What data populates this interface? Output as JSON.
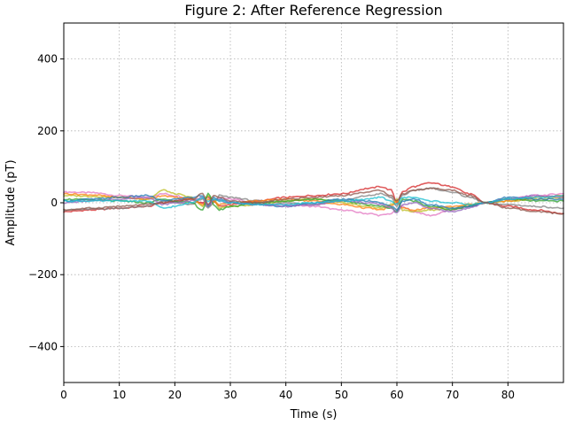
{
  "chart_data": {
    "type": "line",
    "title": "Figure 2: After Reference Regression",
    "xlabel": "Time (s)",
    "ylabel": "Amplitude (pT)",
    "xlim": [
      0,
      90
    ],
    "ylim": [
      -500,
      500
    ],
    "xticks": [
      0,
      10,
      20,
      30,
      40,
      50,
      60,
      70,
      80
    ],
    "yticks": [
      -400,
      -200,
      0,
      200,
      400
    ],
    "xtick_labels": [
      "0",
      "10",
      "20",
      "30",
      "40",
      "50",
      "60",
      "70",
      "80"
    ],
    "ytick_labels": [
      "−400",
      "−200",
      "0",
      "200",
      "400"
    ],
    "grid": true,
    "x": [
      0,
      5,
      10,
      15,
      18,
      20,
      23,
      25,
      26,
      27,
      28,
      30,
      35,
      40,
      45,
      50,
      55,
      57,
      59,
      60,
      61,
      63,
      66,
      70,
      73,
      76,
      80,
      85,
      90
    ],
    "series": [
      {
        "color": "#e377c2",
        "values": [
          30,
          28,
          20,
          15,
          25,
          20,
          10,
          0,
          -10,
          5,
          15,
          10,
          0,
          -5,
          -10,
          -20,
          -30,
          -35,
          -30,
          -20,
          -10,
          -25,
          -35,
          -20,
          -10,
          0,
          10,
          20,
          25
        ]
      },
      {
        "color": "#d62728",
        "values": [
          -25,
          -20,
          -15,
          -10,
          0,
          5,
          10,
          0,
          15,
          5,
          -10,
          -5,
          5,
          15,
          20,
          25,
          40,
          45,
          35,
          0,
          30,
          45,
          55,
          45,
          25,
          0,
          -10,
          -20,
          -30
        ]
      },
      {
        "color": "#7f7f7f",
        "values": [
          -20,
          -18,
          -15,
          -10,
          5,
          0,
          -5,
          10,
          -15,
          0,
          20,
          15,
          5,
          0,
          -5,
          5,
          20,
          25,
          15,
          -10,
          20,
          35,
          40,
          30,
          15,
          0,
          -5,
          -10,
          -15
        ]
      },
      {
        "color": "#bcbd22",
        "values": [
          20,
          18,
          15,
          10,
          35,
          25,
          15,
          -10,
          20,
          10,
          -15,
          -10,
          -5,
          5,
          10,
          0,
          -10,
          -15,
          -5,
          10,
          -20,
          -25,
          -20,
          -15,
          -5,
          0,
          5,
          10,
          15
        ]
      },
      {
        "color": "#ff7f0e",
        "values": [
          25,
          22,
          15,
          10,
          20,
          15,
          10,
          -5,
          10,
          5,
          -5,
          0,
          5,
          10,
          5,
          -5,
          -15,
          -20,
          -10,
          5,
          -15,
          -20,
          -15,
          -10,
          -5,
          0,
          5,
          15,
          20
        ]
      },
      {
        "color": "#2ca02c",
        "values": [
          10,
          8,
          5,
          0,
          10,
          5,
          0,
          -20,
          25,
          -5,
          -20,
          -10,
          0,
          5,
          10,
          5,
          -5,
          -10,
          -15,
          -25,
          10,
          5,
          -10,
          -20,
          -10,
          0,
          10,
          5,
          5
        ]
      },
      {
        "color": "#1f77b4",
        "values": [
          5,
          10,
          15,
          20,
          5,
          10,
          15,
          20,
          -10,
          15,
          10,
          0,
          -5,
          -10,
          0,
          10,
          5,
          0,
          -10,
          -20,
          5,
          10,
          -5,
          -15,
          -10,
          0,
          15,
          10,
          10
        ]
      },
      {
        "color": "#9467bd",
        "values": [
          0,
          5,
          10,
          15,
          -5,
          0,
          5,
          15,
          -5,
          10,
          5,
          0,
          -5,
          -10,
          -5,
          5,
          0,
          -5,
          -15,
          -30,
          -5,
          0,
          -15,
          -25,
          -15,
          0,
          10,
          20,
          15
        ]
      },
      {
        "color": "#17becf",
        "values": [
          5,
          5,
          5,
          5,
          -15,
          -10,
          0,
          15,
          5,
          10,
          5,
          0,
          -5,
          -5,
          0,
          5,
          10,
          15,
          5,
          -5,
          15,
          15,
          5,
          0,
          -5,
          0,
          10,
          15,
          20
        ]
      },
      {
        "color": "#8c564b",
        "values": [
          -20,
          -15,
          -10,
          -5,
          0,
          5,
          10,
          25,
          -5,
          20,
          15,
          5,
          0,
          10,
          15,
          20,
          30,
          35,
          20,
          5,
          25,
          35,
          40,
          35,
          20,
          0,
          -15,
          -25,
          -30
        ]
      }
    ]
  }
}
